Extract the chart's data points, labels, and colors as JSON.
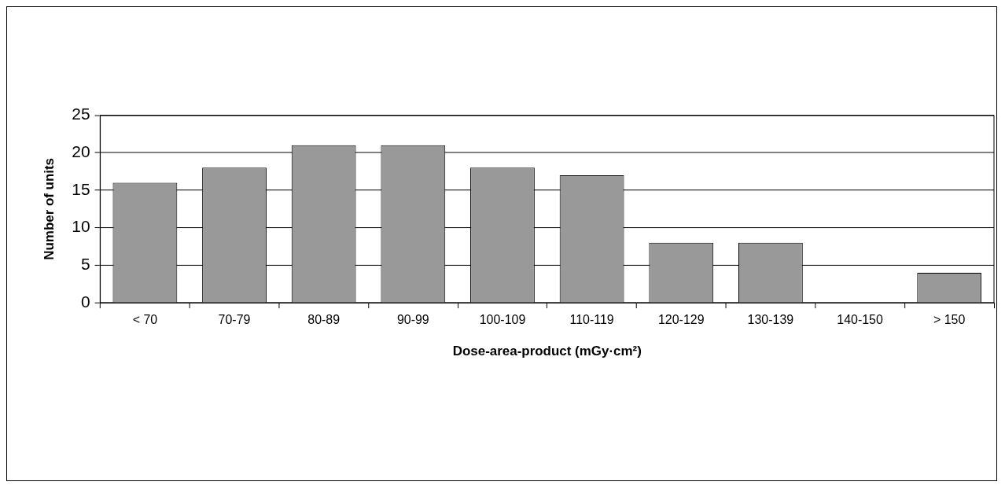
{
  "chart_data": {
    "type": "bar",
    "xlabel": "Dose-area-product (mGy·cm²)",
    "ylabel": "Number of units",
    "categories": [
      "< 70",
      "70-79",
      "80-89",
      "90-99",
      "100-109",
      "110-119",
      "120-129",
      "130-139",
      "140-150",
      "> 150"
    ],
    "values": [
      16,
      18,
      21,
      21,
      18,
      17,
      8,
      8,
      0,
      4
    ],
    "color": "#999999",
    "ylim": [
      0,
      25
    ],
    "yticks": [
      0,
      5,
      10,
      15,
      20,
      25
    ],
    "grid": "y",
    "legend": false
  }
}
